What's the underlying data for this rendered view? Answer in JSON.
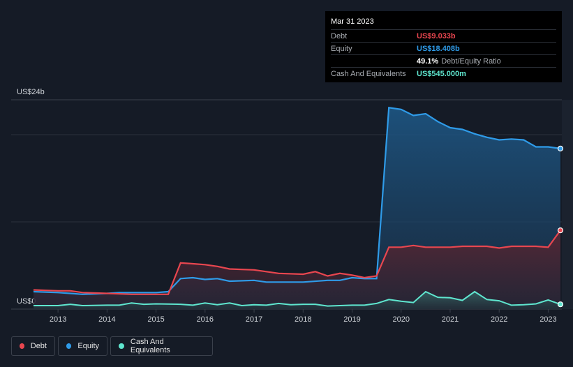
{
  "tooltip": {
    "date": "Mar 31 2023",
    "debt_label": "Debt",
    "debt_value": "US$9.033b",
    "equity_label": "Equity",
    "equity_value": "US$18.408b",
    "ratio_value": "49.1%",
    "ratio_label": "Debt/Equity Ratio",
    "cash_label": "Cash And Equivalents",
    "cash_value": "US$545.000m"
  },
  "legend": {
    "debt": "Debt",
    "equity": "Equity",
    "cash": "Cash And Equivalents"
  },
  "colors": {
    "debt": "#e8464f",
    "equity": "#2f9be8",
    "cash": "#5fe6cf",
    "background": "#151b26"
  },
  "chart_data": {
    "type": "area",
    "ylabel_top": "US$24b",
    "ylabel_bottom": "US$0",
    "ylim": [
      0,
      24
    ],
    "xlim": [
      2012.5,
      2023.25
    ],
    "x_ticks": [
      "2013",
      "2014",
      "2015",
      "2016",
      "2017",
      "2018",
      "2019",
      "2020",
      "2021",
      "2022",
      "2023"
    ],
    "grid": true,
    "series": [
      {
        "name": "Debt",
        "color": "#e8464f",
        "points": [
          [
            2012.5,
            2.2
          ],
          [
            2013.0,
            2.1
          ],
          [
            2013.25,
            2.1
          ],
          [
            2013.5,
            1.9
          ],
          [
            2014.0,
            1.8
          ],
          [
            2014.5,
            1.7
          ],
          [
            2015.0,
            1.7
          ],
          [
            2015.25,
            1.7
          ],
          [
            2015.5,
            5.3
          ],
          [
            2015.75,
            5.2
          ],
          [
            2016.0,
            5.1
          ],
          [
            2016.25,
            4.9
          ],
          [
            2016.5,
            4.6
          ],
          [
            2017.0,
            4.5
          ],
          [
            2017.25,
            4.3
          ],
          [
            2017.5,
            4.1
          ],
          [
            2018.0,
            4.0
          ],
          [
            2018.25,
            4.3
          ],
          [
            2018.5,
            3.8
          ],
          [
            2018.75,
            4.1
          ],
          [
            2019.0,
            3.9
          ],
          [
            2019.25,
            3.6
          ],
          [
            2019.5,
            3.8
          ],
          [
            2019.75,
            7.1
          ],
          [
            2020.0,
            7.1
          ],
          [
            2020.25,
            7.3
          ],
          [
            2020.5,
            7.1
          ],
          [
            2020.75,
            7.1
          ],
          [
            2021.0,
            7.1
          ],
          [
            2021.25,
            7.2
          ],
          [
            2021.5,
            7.2
          ],
          [
            2021.75,
            7.2
          ],
          [
            2022.0,
            7.0
          ],
          [
            2022.25,
            7.2
          ],
          [
            2022.5,
            7.2
          ],
          [
            2022.75,
            7.2
          ],
          [
            2023.0,
            7.1
          ],
          [
            2023.25,
            9.033
          ]
        ]
      },
      {
        "name": "Equity",
        "color": "#2f9be8",
        "points": [
          [
            2012.5,
            2.0
          ],
          [
            2013.0,
            1.9
          ],
          [
            2013.25,
            1.8
          ],
          [
            2013.5,
            1.7
          ],
          [
            2014.0,
            1.8
          ],
          [
            2014.25,
            1.9
          ],
          [
            2014.5,
            1.9
          ],
          [
            2015.0,
            1.9
          ],
          [
            2015.25,
            2.0
          ],
          [
            2015.5,
            3.5
          ],
          [
            2015.75,
            3.6
          ],
          [
            2016.0,
            3.4
          ],
          [
            2016.25,
            3.5
          ],
          [
            2016.5,
            3.2
          ],
          [
            2017.0,
            3.3
          ],
          [
            2017.25,
            3.1
          ],
          [
            2017.5,
            3.1
          ],
          [
            2018.0,
            3.1
          ],
          [
            2018.5,
            3.3
          ],
          [
            2018.75,
            3.3
          ],
          [
            2019.0,
            3.6
          ],
          [
            2019.25,
            3.5
          ],
          [
            2019.5,
            3.5
          ],
          [
            2019.75,
            23.1
          ],
          [
            2020.0,
            22.9
          ],
          [
            2020.25,
            22.2
          ],
          [
            2020.5,
            22.4
          ],
          [
            2020.75,
            21.5
          ],
          [
            2021.0,
            20.8
          ],
          [
            2021.25,
            20.6
          ],
          [
            2021.5,
            20.1
          ],
          [
            2021.75,
            19.7
          ],
          [
            2022.0,
            19.4
          ],
          [
            2022.25,
            19.5
          ],
          [
            2022.5,
            19.4
          ],
          [
            2022.75,
            18.6
          ],
          [
            2023.0,
            18.6
          ],
          [
            2023.25,
            18.408
          ]
        ]
      },
      {
        "name": "Cash And Equivalents",
        "color": "#5fe6cf",
        "points": [
          [
            2012.5,
            0.4
          ],
          [
            2013.0,
            0.4
          ],
          [
            2013.25,
            0.55
          ],
          [
            2013.5,
            0.4
          ],
          [
            2014.0,
            0.45
          ],
          [
            2014.25,
            0.45
          ],
          [
            2014.5,
            0.7
          ],
          [
            2014.75,
            0.55
          ],
          [
            2015.0,
            0.6
          ],
          [
            2015.5,
            0.55
          ],
          [
            2015.75,
            0.45
          ],
          [
            2016.0,
            0.7
          ],
          [
            2016.25,
            0.5
          ],
          [
            2016.5,
            0.7
          ],
          [
            2016.75,
            0.4
          ],
          [
            2017.0,
            0.5
          ],
          [
            2017.25,
            0.45
          ],
          [
            2017.5,
            0.65
          ],
          [
            2017.75,
            0.5
          ],
          [
            2018.0,
            0.55
          ],
          [
            2018.25,
            0.55
          ],
          [
            2018.5,
            0.35
          ],
          [
            2018.75,
            0.4
          ],
          [
            2019.0,
            0.45
          ],
          [
            2019.25,
            0.45
          ],
          [
            2019.5,
            0.65
          ],
          [
            2019.75,
            1.1
          ],
          [
            2020.0,
            0.9
          ],
          [
            2020.25,
            0.75
          ],
          [
            2020.5,
            2.0
          ],
          [
            2020.75,
            1.35
          ],
          [
            2021.0,
            1.3
          ],
          [
            2021.25,
            1.0
          ],
          [
            2021.5,
            2.0
          ],
          [
            2021.75,
            1.1
          ],
          [
            2022.0,
            0.95
          ],
          [
            2022.25,
            0.45
          ],
          [
            2022.5,
            0.5
          ],
          [
            2022.75,
            0.6
          ],
          [
            2023.0,
            1.05
          ],
          [
            2023.25,
            0.545
          ]
        ]
      }
    ]
  }
}
